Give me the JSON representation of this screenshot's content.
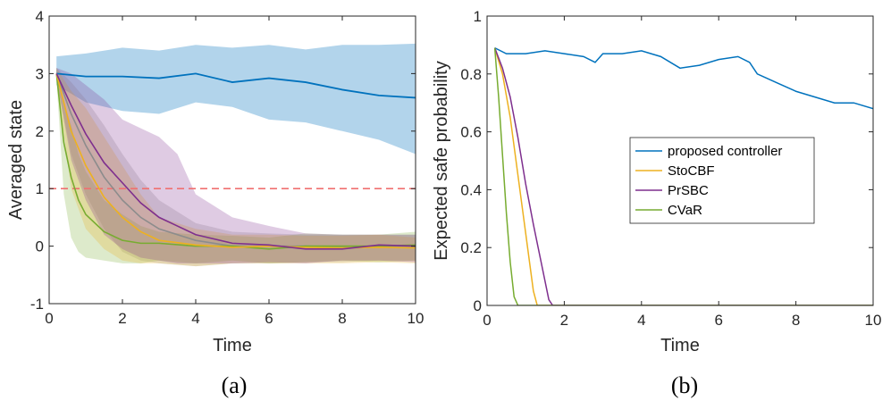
{
  "chart_data": [
    {
      "type": "line",
      "panel": "(a)",
      "xlabel": "Time",
      "ylabel": "Averaged state",
      "xlim": [
        0,
        10
      ],
      "ylim": [
        -1,
        4
      ],
      "xticks": [
        0,
        2,
        4,
        6,
        8,
        10
      ],
      "yticks": [
        -1,
        0,
        1,
        2,
        3,
        4
      ],
      "reference_line": {
        "y": 1,
        "color": "#f07070",
        "style": "dashed"
      },
      "series": [
        {
          "name": "proposed controller",
          "color": "#0072bd",
          "x": [
            0.2,
            1,
            2,
            3,
            4,
            5,
            6,
            7,
            8,
            9,
            10
          ],
          "mean": [
            3.0,
            2.95,
            2.95,
            2.92,
            3.0,
            2.85,
            2.92,
            2.85,
            2.72,
            2.62,
            2.58
          ],
          "lower": [
            2.8,
            2.5,
            2.35,
            2.3,
            2.5,
            2.42,
            2.2,
            2.15,
            2.0,
            1.85,
            1.6
          ],
          "upper": [
            3.3,
            3.35,
            3.45,
            3.4,
            3.5,
            3.45,
            3.5,
            3.42,
            3.5,
            3.5,
            3.52
          ]
        },
        {
          "name": "StoCBF",
          "color": "#edb120",
          "x": [
            0.2,
            0.6,
            1,
            1.5,
            2,
            2.5,
            3,
            4,
            5,
            6,
            7,
            8,
            9,
            10
          ],
          "mean": [
            3.0,
            2.0,
            1.4,
            0.85,
            0.5,
            0.25,
            0.1,
            0.02,
            -0.02,
            0.0,
            -0.02,
            -0.03,
            -0.02,
            -0.03
          ],
          "lower": [
            2.9,
            1.0,
            0.3,
            -0.05,
            -0.25,
            -0.3,
            -0.3,
            -0.35,
            -0.3,
            -0.3,
            -0.3,
            -0.3,
            -0.28,
            -0.3
          ],
          "upper": [
            3.1,
            2.7,
            2.4,
            1.9,
            1.4,
            0.9,
            0.5,
            0.3,
            0.2,
            0.2,
            0.18,
            0.18,
            0.2,
            0.15
          ]
        },
        {
          "name": "PrSBC",
          "color": "#7e2f8e",
          "x": [
            0.2,
            0.6,
            1,
            1.5,
            2,
            2.5,
            3,
            3.5,
            4,
            5,
            6,
            7,
            8,
            9,
            10
          ],
          "mean": [
            3.0,
            2.45,
            1.95,
            1.45,
            1.1,
            0.75,
            0.5,
            0.35,
            0.2,
            0.05,
            0.02,
            -0.05,
            -0.05,
            0.02,
            0.0
          ],
          "lower": [
            2.9,
            1.5,
            0.8,
            0.2,
            -0.05,
            -0.2,
            -0.25,
            -0.3,
            -0.3,
            -0.3,
            -0.28,
            -0.3,
            -0.25,
            -0.25,
            -0.28
          ],
          "upper": [
            3.1,
            3.0,
            2.8,
            2.55,
            2.2,
            2.05,
            1.9,
            1.6,
            0.9,
            0.5,
            0.35,
            0.22,
            0.2,
            0.2,
            0.2
          ]
        },
        {
          "name": "CVaR",
          "color": "#77ac30",
          "x": [
            0.2,
            0.4,
            0.6,
            0.8,
            1,
            1.5,
            2,
            2.5,
            3,
            4,
            5,
            6,
            7,
            8,
            9,
            10
          ],
          "mean": [
            3.0,
            1.8,
            1.2,
            0.8,
            0.55,
            0.25,
            0.1,
            0.05,
            0.05,
            0.0,
            0.0,
            -0.05,
            0.0,
            0.0,
            0.0,
            0.02
          ],
          "lower": [
            2.9,
            0.9,
            0.15,
            -0.1,
            -0.2,
            -0.25,
            -0.3,
            -0.3,
            -0.25,
            -0.3,
            -0.25,
            -0.3,
            -0.28,
            -0.25,
            -0.28,
            -0.25
          ],
          "upper": [
            3.1,
            2.5,
            2.1,
            1.6,
            1.3,
            0.8,
            0.55,
            0.35,
            0.25,
            0.2,
            0.18,
            0.15,
            0.22,
            0.2,
            0.2,
            0.25
          ]
        },
        {
          "name": "gray band",
          "color": "#8c8c8c",
          "x": [
            0.2,
            0.6,
            1,
            1.5,
            2,
            2.5,
            3,
            4,
            5,
            6,
            7,
            8,
            9,
            10
          ],
          "mean": [
            3.0,
            2.3,
            1.75,
            1.2,
            0.8,
            0.5,
            0.3,
            0.1,
            0.0,
            0.0,
            0.0,
            -0.02,
            0.0,
            0.0
          ],
          "lower": [
            2.9,
            1.6,
            0.9,
            0.3,
            -0.1,
            -0.25,
            -0.3,
            -0.35,
            -0.3,
            -0.3,
            -0.28,
            -0.28,
            -0.25,
            -0.25
          ],
          "upper": [
            3.1,
            2.85,
            2.55,
            2.1,
            1.6,
            1.15,
            0.8,
            0.4,
            0.25,
            0.22,
            0.2,
            0.2,
            0.2,
            0.2
          ]
        }
      ],
      "caption": "(a)"
    },
    {
      "type": "line",
      "panel": "(b)",
      "xlabel": "Time",
      "ylabel": "Expected safe probability",
      "xlim": [
        0,
        10
      ],
      "ylim": [
        0,
        1
      ],
      "xticks": [
        0,
        2,
        4,
        6,
        8,
        10
      ],
      "yticks": [
        0,
        0.2,
        0.4,
        0.6,
        0.8,
        1
      ],
      "legend": {
        "position": "center-right",
        "entries": [
          "proposed controller",
          "StoCBF",
          "PrSBC",
          "CVaR"
        ]
      },
      "series": [
        {
          "name": "proposed controller",
          "color": "#0072bd",
          "x": [
            0.2,
            0.5,
            1,
            1.5,
            2,
            2.5,
            2.8,
            3,
            3.5,
            4,
            4.5,
            5,
            5.5,
            6,
            6.5,
            6.8,
            7,
            7.5,
            8,
            8.5,
            9,
            9.5,
            10
          ],
          "y": [
            0.89,
            0.87,
            0.87,
            0.88,
            0.87,
            0.86,
            0.84,
            0.87,
            0.87,
            0.88,
            0.86,
            0.82,
            0.83,
            0.85,
            0.86,
            0.84,
            0.8,
            0.77,
            0.74,
            0.72,
            0.7,
            0.7,
            0.68
          ]
        },
        {
          "name": "StoCBF",
          "color": "#edb120",
          "x": [
            0.2,
            0.4,
            0.6,
            0.8,
            1.0,
            1.2,
            1.3,
            10
          ],
          "y": [
            0.89,
            0.8,
            0.65,
            0.45,
            0.25,
            0.05,
            0.0,
            0.0
          ]
        },
        {
          "name": "PrSBC",
          "color": "#7e2f8e",
          "x": [
            0.2,
            0.4,
            0.6,
            0.8,
            1.0,
            1.2,
            1.4,
            1.6,
            1.7,
            10
          ],
          "y": [
            0.89,
            0.82,
            0.72,
            0.58,
            0.42,
            0.28,
            0.15,
            0.02,
            0.0,
            0.0
          ]
        },
        {
          "name": "CVaR",
          "color": "#77ac30",
          "x": [
            0.2,
            0.3,
            0.4,
            0.5,
            0.6,
            0.7,
            0.8,
            10
          ],
          "y": [
            0.89,
            0.72,
            0.52,
            0.32,
            0.15,
            0.03,
            0.0,
            0.0
          ]
        }
      ],
      "caption": "(b)"
    }
  ]
}
